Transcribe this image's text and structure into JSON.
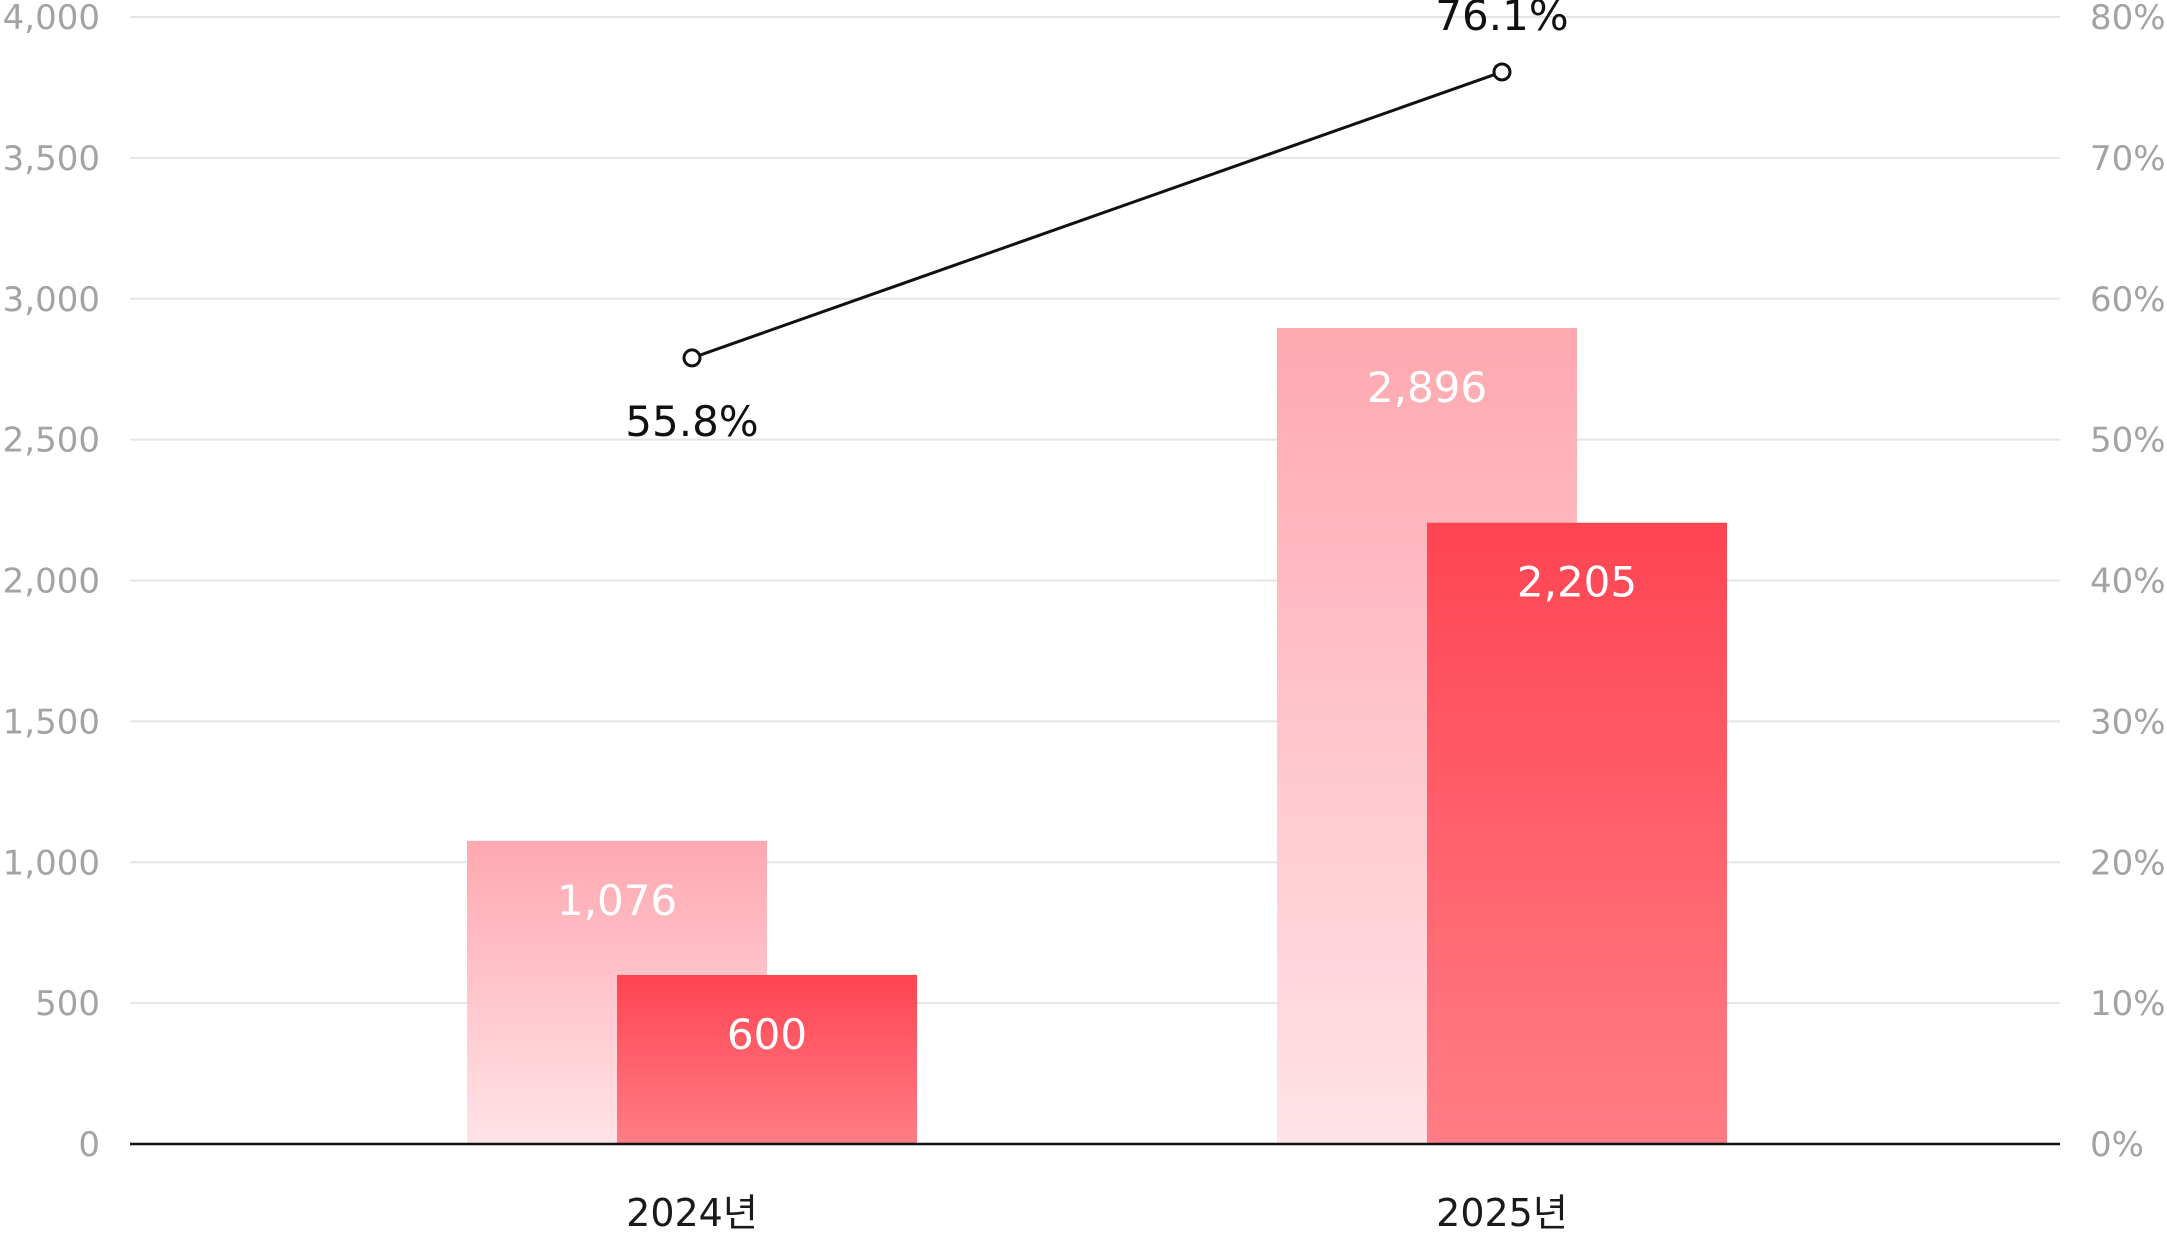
{
  "chart_data": {
    "type": "bar",
    "categories": [
      "2024년",
      "2025년"
    ],
    "series": [
      {
        "type": "bar",
        "values": [
          1076,
          2896
        ],
        "labels": [
          "1,076",
          "2,896"
        ],
        "color_top": "#ffa8b0",
        "color_bottom": "#ffe3e8"
      },
      {
        "type": "bar",
        "values": [
          600,
          2205
        ],
        "labels": [
          "600",
          "2,205"
        ],
        "color_top": "#ff4452",
        "color_bottom": "#ff7d86"
      },
      {
        "type": "line",
        "axis": "right",
        "values": [
          55.8,
          76.1
        ],
        "labels": [
          "55.8%",
          "76.1%"
        ],
        "color": "#111111"
      }
    ],
    "y_left": {
      "range": [
        0,
        4000
      ],
      "ticks": [
        "0",
        "500",
        "1,000",
        "1,500",
        "2,000",
        "2,500",
        "3,000",
        "3,500",
        "4,000"
      ]
    },
    "y_right": {
      "range": [
        0,
        80
      ],
      "ticks": [
        "0%",
        "10%",
        "20%",
        "30%",
        "40%",
        "50%",
        "60%",
        "70%",
        "80%"
      ]
    },
    "grid": true,
    "legend": "none"
  }
}
